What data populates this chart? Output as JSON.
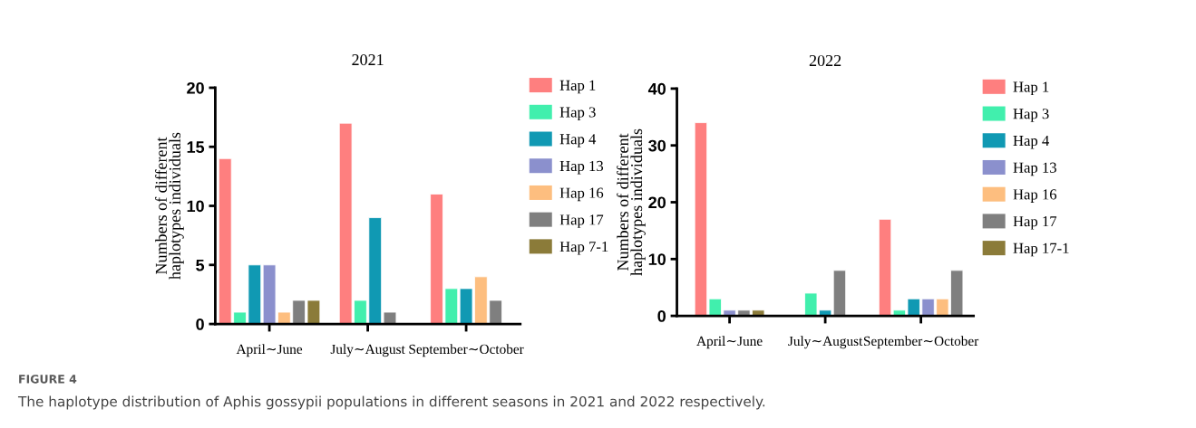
{
  "chart_data": [
    {
      "type": "bar",
      "title": "2021",
      "ylabel": "Numbers of different\nhaplotypes individuals",
      "categories": [
        "April∼June",
        "July∼August",
        "September∼October"
      ],
      "ylim": [
        0,
        20
      ],
      "yticks": [
        0,
        5,
        10,
        15,
        20
      ],
      "grid": false,
      "legend": "right",
      "series": [
        {
          "name": "Hap 1",
          "color": "#fe7f7f",
          "values": [
            14,
            17,
            11
          ]
        },
        {
          "name": "Hap 3",
          "color": "#41efad",
          "values": [
            1,
            2,
            3
          ]
        },
        {
          "name": "Hap 4",
          "color": "#1099b3",
          "values": [
            5,
            9,
            3
          ]
        },
        {
          "name": "Hap 13",
          "color": "#8b90cd",
          "values": [
            5,
            null,
            null
          ]
        },
        {
          "name": "Hap 16",
          "color": "#fdbe7f",
          "values": [
            1,
            null,
            4
          ]
        },
        {
          "name": "Hap 17",
          "color": "#7f7f7f",
          "values": [
            2,
            1,
            2
          ]
        },
        {
          "name": "Hap 7-1",
          "color": "#8b7b39",
          "values": [
            2,
            null,
            null
          ]
        }
      ]
    },
    {
      "type": "bar",
      "title": "2022",
      "ylabel": "Numbers of different\nhaplotypes individuals",
      "categories": [
        "April∼June",
        "July∼August",
        "September∼October"
      ],
      "ylim": [
        0,
        40
      ],
      "yticks": [
        0,
        10,
        20,
        30,
        40
      ],
      "grid": false,
      "legend": "right",
      "annotations": [
        "FIGURE 4",
        "The haplotype distribution of Aphis gossypii populations in different seasons in 2021 and 2022 respectively."
      ],
      "series": [
        {
          "name": "Hap 1",
          "color": "#fe7f7f",
          "values": [
            34,
            null,
            17
          ]
        },
        {
          "name": "Hap 3",
          "color": "#41efad",
          "values": [
            3,
            4,
            1
          ]
        },
        {
          "name": "Hap 4",
          "color": "#1099b3",
          "values": [
            null,
            1,
            3
          ]
        },
        {
          "name": "Hap 13",
          "color": "#8b90cd",
          "values": [
            1,
            null,
            3
          ]
        },
        {
          "name": "Hap 16",
          "color": "#fdbe7f",
          "values": [
            null,
            null,
            3
          ]
        },
        {
          "name": "Hap 17",
          "color": "#7f7f7f",
          "values": [
            1,
            8,
            8
          ]
        },
        {
          "name": "Hap 17-1",
          "color": "#8b7b39",
          "values": [
            1,
            null,
            null
          ]
        }
      ]
    }
  ]
}
